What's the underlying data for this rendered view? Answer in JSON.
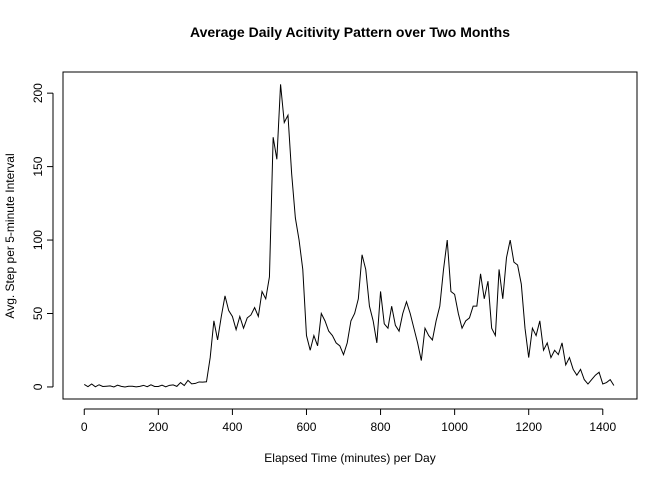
{
  "chart_data": {
    "type": "line",
    "title": "Average Daily Acitivity Pattern over Two Months",
    "x_label": "Elapsed Time (minutes) per Day",
    "y_label": "Avg. Step per 5-minute Interval",
    "x": [
      0,
      10,
      20,
      30,
      40,
      50,
      60,
      70,
      80,
      90,
      100,
      110,
      120,
      130,
      140,
      150,
      160,
      170,
      180,
      190,
      200,
      210,
      220,
      230,
      240,
      250,
      260,
      270,
      280,
      290,
      300,
      310,
      320,
      330,
      340,
      350,
      360,
      370,
      380,
      390,
      400,
      410,
      420,
      430,
      440,
      450,
      460,
      470,
      480,
      490,
      500,
      510,
      520,
      530,
      540,
      550,
      560,
      570,
      580,
      590,
      600,
      610,
      620,
      630,
      640,
      650,
      660,
      670,
      680,
      690,
      700,
      710,
      720,
      730,
      740,
      750,
      760,
      770,
      780,
      790,
      800,
      810,
      820,
      830,
      840,
      850,
      860,
      870,
      880,
      890,
      900,
      910,
      920,
      930,
      940,
      950,
      960,
      970,
      980,
      990,
      1000,
      1010,
      1020,
      1030,
      1040,
      1050,
      1060,
      1070,
      1080,
      1090,
      1100,
      1110,
      1120,
      1130,
      1140,
      1150,
      1160,
      1170,
      1180,
      1190,
      1200,
      1210,
      1220,
      1230,
      1240,
      1250,
      1260,
      1270,
      1280,
      1290,
      1300,
      1310,
      1320,
      1330,
      1340,
      1350,
      1360,
      1370,
      1380,
      1390,
      1400,
      1410,
      1420,
      1430
    ],
    "series": [
      {
        "name": "steps",
        "color": "#000000",
        "values": [
          1.7,
          0.2,
          2,
          0.1,
          1.5,
          0.3,
          0.5,
          0.7,
          0,
          1.2,
          0.4,
          0,
          0.5,
          0.5,
          0.1,
          0.4,
          1.1,
          0.2,
          1.5,
          0.3,
          0.3,
          1.2,
          0.1,
          1.1,
          1.4,
          0.4,
          3,
          1,
          4.5,
          2.1,
          2.4,
          3.4,
          3.3,
          3.5,
          20,
          45,
          32,
          48,
          62,
          52,
          48,
          39,
          48,
          40,
          47,
          49,
          54,
          48,
          65,
          60,
          75,
          170,
          155,
          206,
          180,
          185,
          145,
          115,
          100,
          80,
          35,
          25,
          35,
          28,
          50,
          45,
          38,
          35,
          30,
          28,
          22,
          30,
          45,
          50,
          60,
          90,
          80,
          55,
          45,
          30,
          65,
          43,
          40,
          55,
          42,
          38,
          50,
          58,
          50,
          40,
          30,
          18,
          40,
          35,
          32,
          45,
          55,
          80,
          100,
          65,
          63,
          50,
          40,
          45,
          47,
          55,
          55,
          77,
          60,
          72,
          40,
          35,
          80,
          60,
          88,
          100,
          85,
          83,
          70,
          40,
          20,
          40,
          35,
          45,
          25,
          30,
          20,
          25,
          22,
          30,
          15,
          20,
          12,
          8,
          12,
          5,
          2,
          5,
          8,
          10,
          2,
          3,
          5,
          1
        ]
      }
    ],
    "xlim": [
      -57.4,
      1492.4
    ],
    "ylim": [
      -8.2,
      214.4
    ],
    "xticks": [
      0,
      200,
      400,
      600,
      800,
      1000,
      1200,
      1400
    ],
    "yticks": [
      0,
      50,
      100,
      150,
      200
    ]
  }
}
